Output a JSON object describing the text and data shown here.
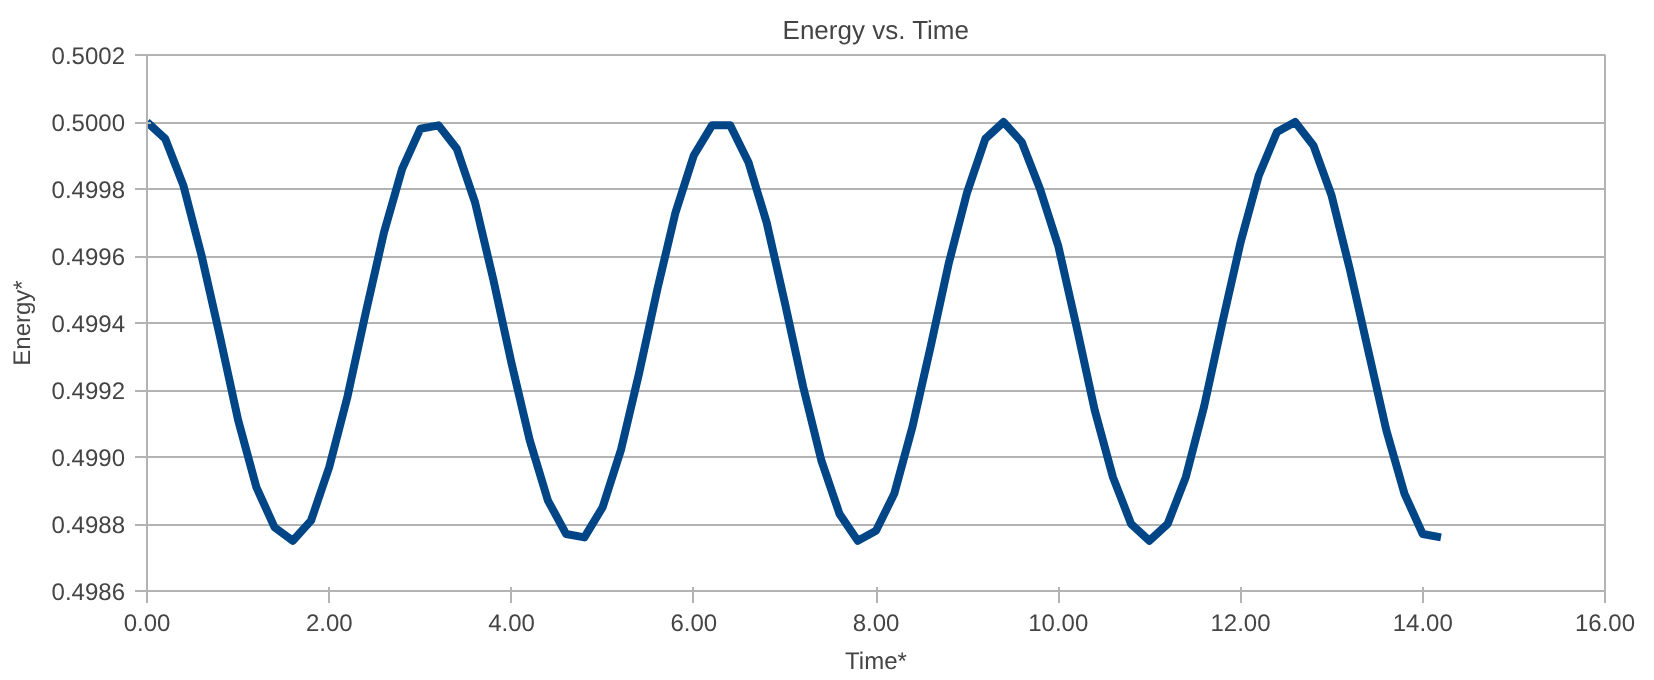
{
  "chart_data": {
    "type": "line",
    "title": "Energy vs. Time",
    "xlabel": "Time*",
    "ylabel": "Energy*",
    "x": [
      0,
      0.2,
      0.4,
      0.6,
      0.8,
      1.0,
      1.2,
      1.4,
      1.6,
      1.8,
      2.0,
      2.2,
      2.4,
      2.6,
      2.8,
      3.0,
      3.2,
      3.4,
      3.6,
      3.8,
      4.0,
      4.2,
      4.4,
      4.6,
      4.8,
      5.0,
      5.2,
      5.4,
      5.6,
      5.8,
      6.0,
      6.2,
      6.4,
      6.6,
      6.8,
      7.0,
      7.2,
      7.4,
      7.6,
      7.8,
      8.0,
      8.2,
      8.4,
      8.6,
      8.8,
      9.0,
      9.2,
      9.4,
      9.6,
      9.8,
      10.0,
      10.2,
      10.4,
      10.6,
      10.8,
      11.0,
      11.2,
      11.4,
      11.6,
      11.8,
      12.0,
      12.2,
      12.4,
      12.6,
      12.8,
      13.0,
      13.2,
      13.4,
      13.6,
      13.8,
      14.0,
      14.2
    ],
    "series": [
      {
        "color": "#004586",
        "values": [
          0.5,
          0.49995,
          0.49981,
          0.4996,
          0.49936,
          0.49911,
          0.49891,
          0.49879,
          0.49875,
          0.49881,
          0.49897,
          0.49918,
          0.49943,
          0.49967,
          0.49986,
          0.49998,
          0.49999,
          0.49992,
          0.49976,
          0.49953,
          0.49928,
          0.49905,
          0.49887,
          0.49877,
          0.49876,
          0.49885,
          0.49902,
          0.49925,
          0.4995,
          0.49973,
          0.4999,
          0.49999,
          0.49999,
          0.49988,
          0.4997,
          0.49946,
          0.49921,
          0.49899,
          0.49883,
          0.49875,
          0.49878,
          0.49889,
          0.49909,
          0.49933,
          0.49958,
          0.49979,
          0.49995,
          0.5,
          0.49994,
          0.4998,
          0.49963,
          0.49939,
          0.49914,
          0.49894,
          0.4988,
          0.49875,
          0.4988,
          0.49894,
          0.49915,
          0.4994,
          0.49964,
          0.49984,
          0.49997,
          0.5,
          0.49993,
          0.49978,
          0.49956,
          0.49932,
          0.49908,
          0.49889,
          0.49877,
          0.49876
        ]
      }
    ],
    "xlim": [
      0,
      16
    ],
    "ylim": [
      0.4986,
      0.5002
    ],
    "xticks": [
      {
        "value": 0,
        "label": "0.00"
      },
      {
        "value": 2,
        "label": "2.00"
      },
      {
        "value": 4,
        "label": "4.00"
      },
      {
        "value": 6,
        "label": "6.00"
      },
      {
        "value": 8,
        "label": "8.00"
      },
      {
        "value": 10,
        "label": "10.00"
      },
      {
        "value": 12,
        "label": "12.00"
      },
      {
        "value": 14,
        "label": "14.00"
      },
      {
        "value": 16,
        "label": "16.00"
      }
    ],
    "yticks": [
      0.4986,
      0.4988,
      {
        "value": 0.499,
        "label": "0.4990"
      },
      0.4992,
      0.4994,
      0.4996,
      0.4998,
      {
        "value": 0.5,
        "label": "0.5000"
      },
      0.5002
    ],
    "grid": "y",
    "line_style": "solid"
  }
}
